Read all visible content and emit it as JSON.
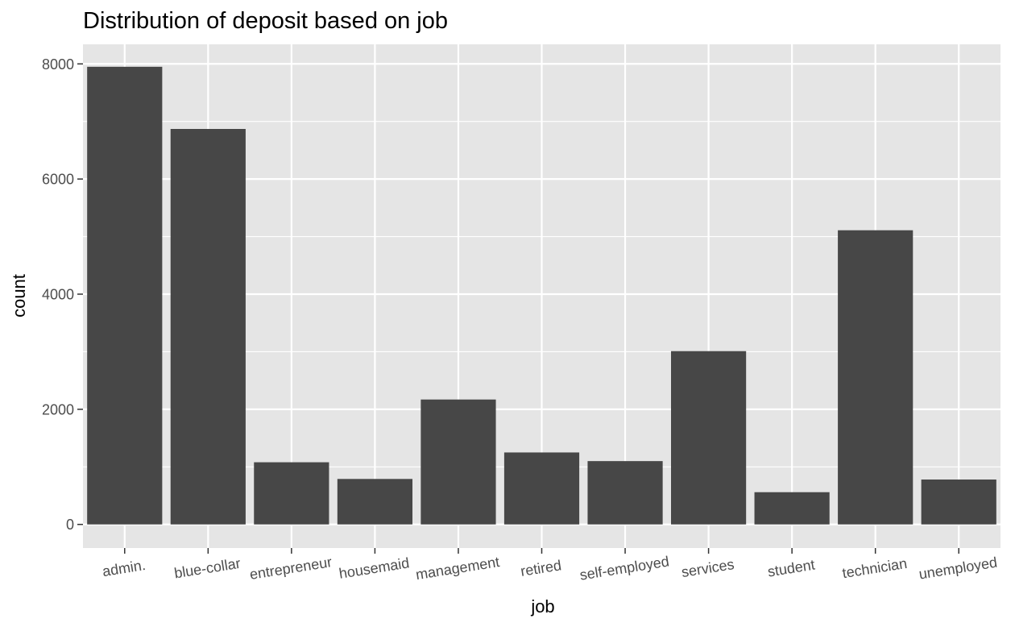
{
  "chart_data": {
    "type": "bar",
    "title": "Distribution of deposit based on job",
    "xlabel": "job",
    "ylabel": "count",
    "categories": [
      "admin.",
      "blue-collar",
      "entrepreneur",
      "housemaid",
      "management",
      "retired",
      "self-employed",
      "services",
      "student",
      "technician",
      "unemployed"
    ],
    "values": [
      7950,
      6870,
      1080,
      790,
      2170,
      1250,
      1100,
      3010,
      560,
      5110,
      780
    ],
    "y_ticks": [
      "0",
      "2000",
      "4000",
      "6000",
      "8000"
    ],
    "ylim": [
      -410,
      8340
    ],
    "grid": true,
    "legend": "none",
    "colors": {
      "bar": "#474747",
      "panel_background": "#e5e5e5",
      "grid": "#ffffff",
      "tick_text": "#4d4d4d",
      "tick_mark": "#333333"
    }
  }
}
